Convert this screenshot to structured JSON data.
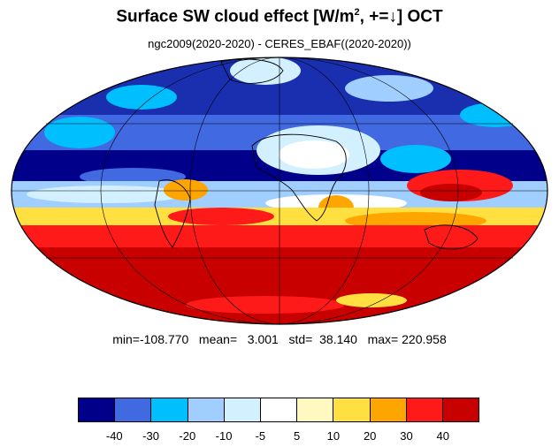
{
  "title": {
    "main": "Surface SW cloud effect [W/m",
    "sup": "2",
    "rest": ", +=↓]  OCT"
  },
  "subtitle": "ngc2009(2020-2020) - CERES_EBAF((2020-2020))",
  "stats": {
    "text": "min=-108.770   mean=   3.001   std=  38.140   max= 220.958"
  },
  "colorbar": {
    "colors": [
      "#00008b",
      "#4169e1",
      "#00bfff",
      "#a0cfff",
      "#d2f0ff",
      "#ffffff",
      "#fff8c0",
      "#ffe040",
      "#ffa500",
      "#ff1a1a",
      "#c80000"
    ],
    "tick_labels": [
      "-40",
      "-30",
      "-20",
      "-10",
      "-5",
      "5",
      "10",
      "20",
      "30",
      "40"
    ]
  },
  "map": {
    "projection": "Mollweide",
    "land_outline_color": "#000000"
  }
}
